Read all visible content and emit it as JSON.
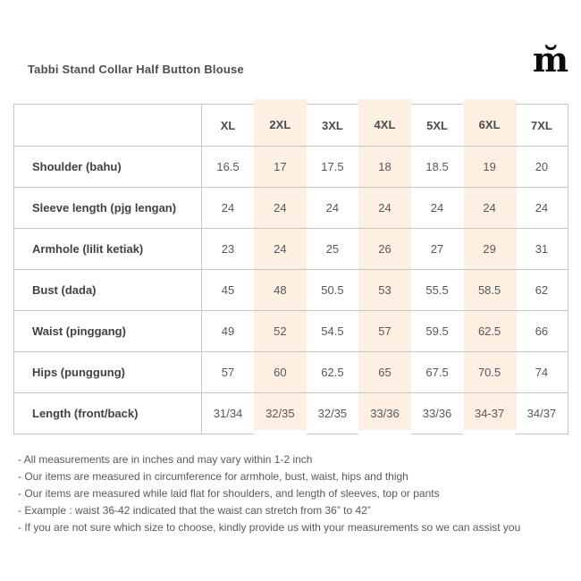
{
  "page": {
    "title": "Tabbi Stand Collar Half Button Blouse",
    "logo_glyph": "m̆"
  },
  "size_chart": {
    "columns": [
      "XL",
      "2XL",
      "3XL",
      "4XL",
      "5XL",
      "6XL",
      "7XL"
    ],
    "highlighted_columns": [
      "2XL",
      "4XL",
      "6XL"
    ],
    "rows": [
      {
        "label": "Shoulder (bahu)",
        "values": [
          "16.5",
          "17",
          "17.5",
          "18",
          "18.5",
          "19",
          "20"
        ]
      },
      {
        "label": "Sleeve length (pjg lengan)",
        "values": [
          "24",
          "24",
          "24",
          "24",
          "24",
          "24",
          "24"
        ]
      },
      {
        "label": "Armhole (lilit ketiak)",
        "values": [
          "23",
          "24",
          "25",
          "26",
          "27",
          "29",
          "31"
        ]
      },
      {
        "label": "Bust (dada)",
        "values": [
          "45",
          "48",
          "50.5",
          "53",
          "55.5",
          "58.5",
          "62"
        ]
      },
      {
        "label": "Waist (pinggang)",
        "values": [
          "49",
          "52",
          "54.5",
          "57",
          "59.5",
          "62.5",
          "66"
        ]
      },
      {
        "label": "Hips (punggung)",
        "values": [
          "57",
          "60",
          "62.5",
          "65",
          "67.5",
          "70.5",
          "74"
        ]
      },
      {
        "label": "Length (front/back)",
        "values": [
          "31/34",
          "32/35",
          "32/35",
          "33/36",
          "33/36",
          "34-37",
          "34/37"
        ]
      }
    ]
  },
  "notes": [
    "- All measurements are in inches and may vary within 1-2 inch",
    "- Our items are measured in circumference for armhole, bust, waist, hips and thigh",
    "- Our items are measured while laid flat for shoulders, and length of sleeves, top or pants",
    "- Example : waist 36-42 indicated that the waist can stretch from 36” to 42”",
    "- If you are not sure which size to choose, kindly provide us with your measurements so we can assist you"
  ],
  "colors": {
    "highlight": "#fdf0e3",
    "border": "#c6c6c6",
    "label_text": "#424244",
    "value_text": "#56575b"
  }
}
